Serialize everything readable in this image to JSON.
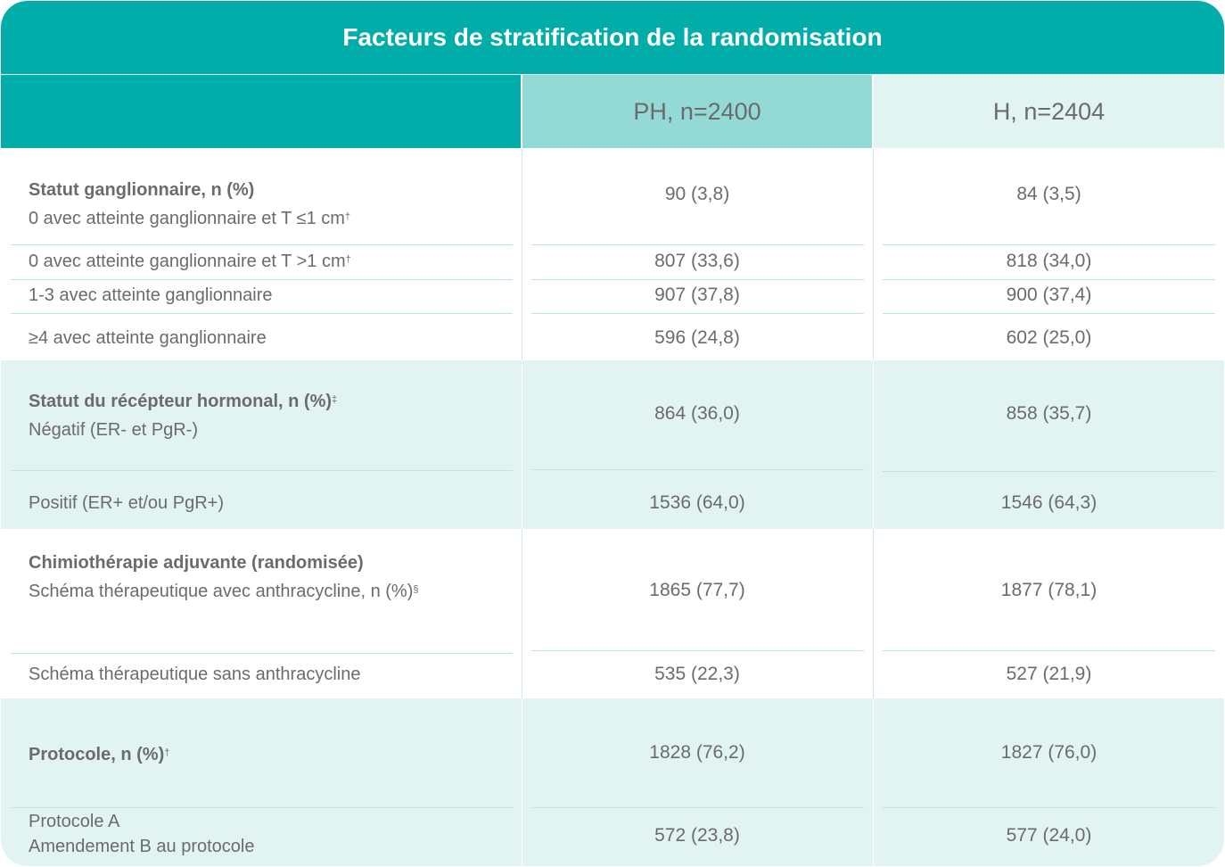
{
  "table": {
    "title": "Facteurs de stratification de la randomisation",
    "col_ph": "PH, n=2400",
    "col_h": "H, n=2404",
    "s1": {
      "heading": "Statut ganglionnaire, n (%)",
      "r1_label": "0 avec atteinte ganglionnaire et T ≤1 cm",
      "r1_sup": "†",
      "r1_ph": "90 (3,8)",
      "r1_h": "84 (3,5)",
      "r2_label": "0 avec atteinte ganglionnaire et T >1 cm",
      "r2_sup": "†",
      "r2_ph": "807 (33,6)",
      "r2_h": "818 (34,0)",
      "r3_label": "1-3 avec atteinte ganglionnaire",
      "r3_ph": "907 (37,8)",
      "r3_h": "900 (37,4)",
      "r4_label": "≥4 avec atteinte ganglionnaire",
      "r4_ph": "596 (24,8)",
      "r4_h": "602 (25,0)"
    },
    "s2": {
      "heading": "Statut du récépteur hormonal, n (%)",
      "heading_sup": "‡",
      "r1_label": "Négatif (ER- et PgR-)",
      "r1_ph": "864 (36,0)",
      "r1_h": "858 (35,7)",
      "r2_label": "Positif (ER+ et/ou PgR+)",
      "r2_ph": "1536 (64,0)",
      "r2_h": "1546 (64,3)"
    },
    "s3": {
      "heading": "Chimiothérapie adjuvante (randomisée)",
      "r1_label": "Schéma thérapeutique avec anthracycline, n (%)",
      "r1_sup": "§",
      "r1_ph": "1865 (77,7)",
      "r1_h": "1877 (78,1)",
      "r2_label": "Schéma thérapeutique sans anthracycline",
      "r2_ph": "535 (22,3)",
      "r2_h": "527 (21,9)"
    },
    "s4": {
      "heading": "Protocole, n (%)",
      "heading_sup": "†",
      "r1_ph": "1828 (76,2)",
      "r1_h": "1827 (76,0)",
      "r2_label_1": "Protocole A",
      "r2_label_2": "Amendement B au protocole",
      "r2_ph": "572 (23,8)",
      "r2_h": "577 (24,0)"
    }
  },
  "colors": {
    "teal": "#00ada9",
    "teal_light": "#93d9d5",
    "mint": "#e2f4f1",
    "text": "#6b6b6b"
  }
}
